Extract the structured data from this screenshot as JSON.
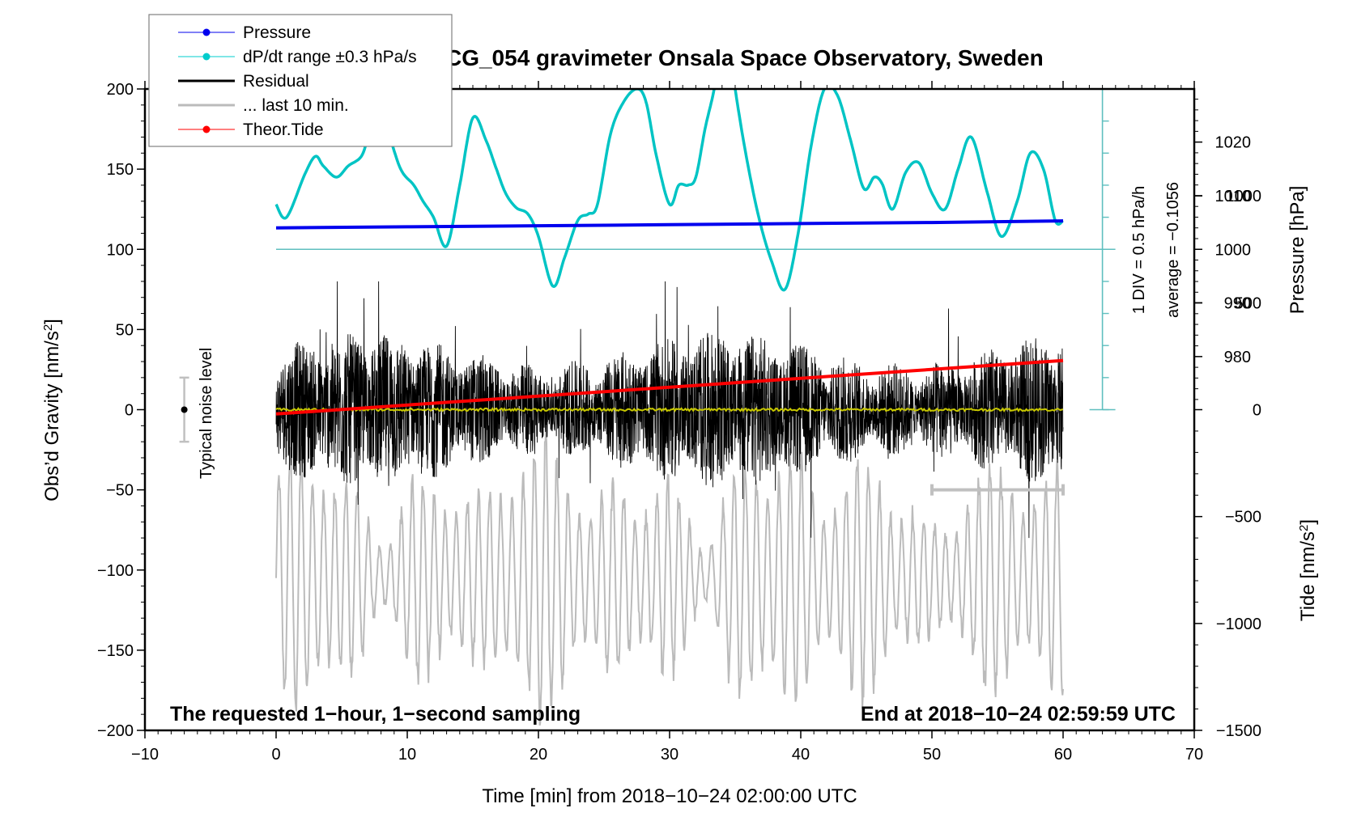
{
  "chart_data": {
    "type": "line",
    "title": "SCG_054 gravimeter Onsala Space Observatory, Sweden",
    "xlabel": "Time [min] from 2018−10−24 02:00:00 UTC",
    "ylabel_left": "Obs’d Gravity [nm/s²]",
    "ylabel_right_top": "Pressure [hPa]",
    "ylabel_right_bottom": "Tide [nm/s²]",
    "xlim": [
      -10,
      70
    ],
    "ylim": [
      -200,
      200
    ],
    "x_ticks": [
      -10,
      0,
      10,
      20,
      30,
      40,
      50,
      60,
      70
    ],
    "x_tick_labels": [
      "−10",
      "0",
      "10",
      "20",
      "30",
      "40",
      "50",
      "60",
      "70"
    ],
    "y_ticks": [
      200,
      150,
      100,
      50,
      0,
      -50,
      -100,
      -150,
      -200
    ],
    "y_tick_labels": [
      "200",
      "150",
      "100",
      "50",
      "0",
      "−50",
      "−100",
      "−150",
      "−200"
    ],
    "pressure_axis": {
      "ticks": [
        1020,
        1010,
        1000,
        990,
        980
      ],
      "tick_labels": [
        "1020",
        "1010",
        "1000",
        "990",
        "980"
      ],
      "reference_hpa": 1000,
      "reference_gravity": 100
    },
    "tide_axis": {
      "ticks": [
        1000,
        500,
        0,
        -500,
        -1000,
        -1500
      ],
      "tick_labels": [
        "1000",
        "500",
        "0",
        "−500",
        "−1000",
        "−1500"
      ],
      "range": [
        -1500,
        1500
      ]
    },
    "legend": {
      "position": "top-left",
      "entries": [
        {
          "label": "Pressure",
          "color": "#0000ee",
          "marker": "dot"
        },
        {
          "label": "dP/dt range ±0.3 hPa/s",
          "color": "#00cccc",
          "marker": "dot"
        },
        {
          "label": "Residual",
          "color": "#000000",
          "marker": "line"
        },
        {
          "label": "... last 10 min.",
          "color": "#bbbbbb",
          "marker": "line"
        },
        {
          "label": "Theor.Tide",
          "color": "#ff0000",
          "marker": "dot"
        }
      ]
    },
    "series": [
      {
        "name": "Pressure",
        "unit": "hPa",
        "color": "#0000ee",
        "x": [
          0,
          10,
          20,
          30,
          40,
          50,
          60
        ],
        "values": [
          1004.0,
          1004.2,
          1004.4,
          1004.6,
          1004.8,
          1005.0,
          1005.3
        ]
      },
      {
        "name": "dP/dt",
        "unit": "gravity-axis units (baseline 100)",
        "color": "#00c4c4",
        "x": [
          0,
          0.8,
          2.2,
          3,
          3.6,
          4.6,
          5.5,
          6.5,
          7.2,
          8.3,
          9.5,
          10.5,
          11.2,
          12,
          13,
          14,
          15,
          16,
          16.8,
          17.5,
          18.3,
          19.2,
          20,
          21.1,
          22,
          23,
          23.8,
          24.5,
          25.5,
          26.5,
          27.5,
          28.2,
          29,
          30,
          30.7,
          31.4,
          32,
          32.7,
          33.4,
          34,
          34.5,
          35,
          35.8,
          36.8,
          37.8,
          38.8,
          39.8,
          40.8,
          41.8,
          42.8,
          43.8,
          44.8,
          45.6,
          46.2,
          47,
          48,
          49,
          50,
          51,
          52,
          53,
          54.2,
          55.3,
          56.5,
          57.5,
          58.5,
          59.4,
          60
        ],
        "values": [
          128,
          120,
          147,
          158,
          152,
          145,
          152,
          158,
          172,
          176,
          150,
          140,
          130,
          120,
          102,
          140,
          182,
          168,
          150,
          135,
          126,
          122,
          108,
          77,
          95,
          118,
          122,
          128,
          172,
          192,
          200,
          192,
          158,
          128,
          140,
          140,
          145,
          175,
          200,
          230,
          230,
          200,
          160,
          120,
          92,
          75,
          110,
          165,
          200,
          196,
          168,
          138,
          145,
          141,
          125,
          148,
          154,
          135,
          125,
          150,
          170,
          136,
          108,
          130,
          160,
          150,
          118,
          118
        ]
      },
      {
        "name": "Residual",
        "unit": "nm/s²",
        "color": "#000000",
        "x_range": [
          0,
          60
        ],
        "typical_amplitude": 25,
        "peak_amplitude": 80,
        "mean": 0
      },
      {
        "name": "Residual smoothed",
        "unit": "nm/s²",
        "color": "#c8c800",
        "x_range": [
          0,
          60
        ],
        "value": 0
      },
      {
        "name": "... last 10 min.",
        "unit": "nm/s² (offset)",
        "color": "#bbbbbb",
        "x_range": [
          0,
          60
        ],
        "center": -105,
        "amplitude": 60
      },
      {
        "name": "Theor.Tide",
        "unit": "nm/s²",
        "color": "#ff0000",
        "x": [
          0,
          60
        ],
        "values": [
          -20,
          230
        ]
      }
    ],
    "noise_level": {
      "label": "Typical noise level",
      "x": -7,
      "center": 0,
      "half_range": 20
    },
    "last_10_min_bracket": {
      "x_range": [
        50,
        60
      ],
      "y": -50
    },
    "dpdt_scale_bar": {
      "x": 63,
      "baseline": 100,
      "range": [
        0,
        200
      ],
      "label": "1 DIV = 0.5 hPa/h",
      "average_label": "average = −0.1056"
    },
    "annotations": {
      "bottom_left": "The requested 1−hour, 1−second sampling",
      "bottom_right": "End at 2018−10−24 02:59:59 UTC"
    }
  }
}
